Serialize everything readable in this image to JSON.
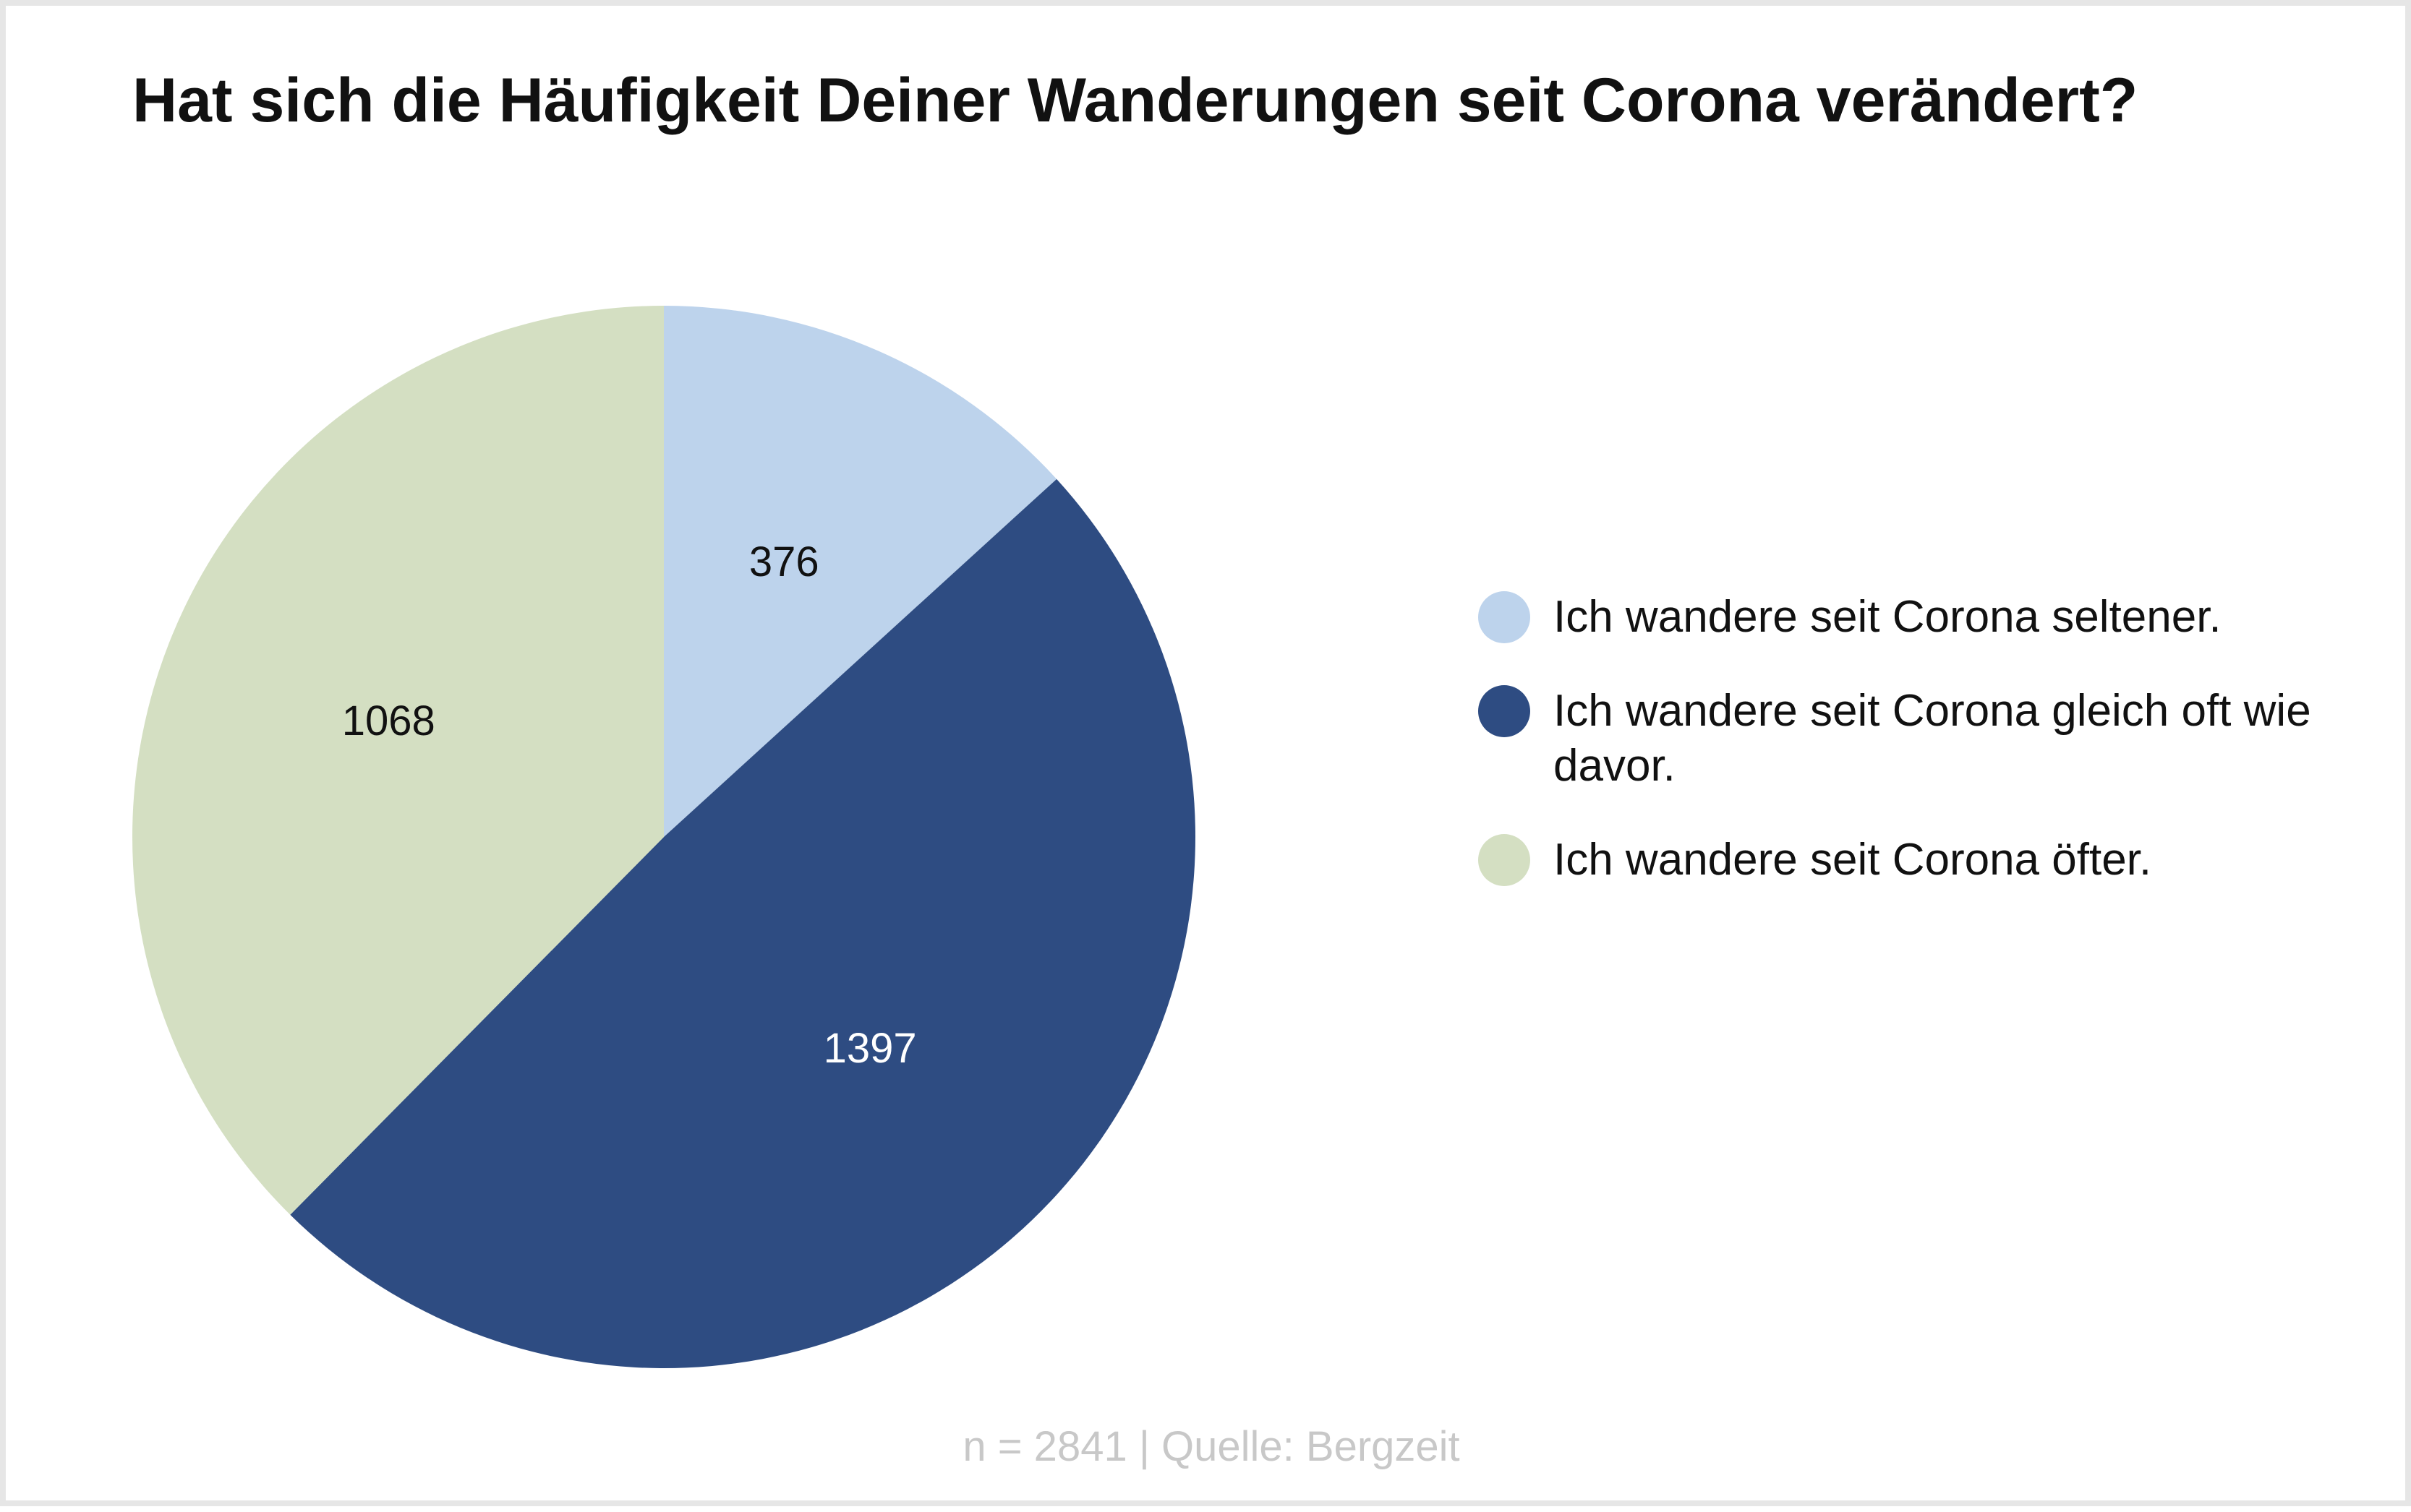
{
  "chart_data": {
    "type": "pie",
    "title": "Hat sich die Häufigkeit Deiner Wanderungen seit Corona verändert?",
    "footer": "n = 2841 | Quelle: Bergzeit",
    "legend_position": "right",
    "slices": [
      {
        "label": "Ich wandere seit Corona seltener.",
        "value": 376,
        "value_label": "376",
        "color": "#bdd3ec",
        "label_color": "#111111"
      },
      {
        "label": "Ich wandere seit Corona gleich oft wie davor.",
        "value": 1397,
        "value_label": "1397",
        "color": "#2e4c82",
        "label_color": "#ffffff"
      },
      {
        "label": "Ich wandere seit Corona öfter.",
        "value": 1068,
        "value_label": "1068",
        "color": "#d4dfc2",
        "label_color": "#111111"
      }
    ]
  }
}
